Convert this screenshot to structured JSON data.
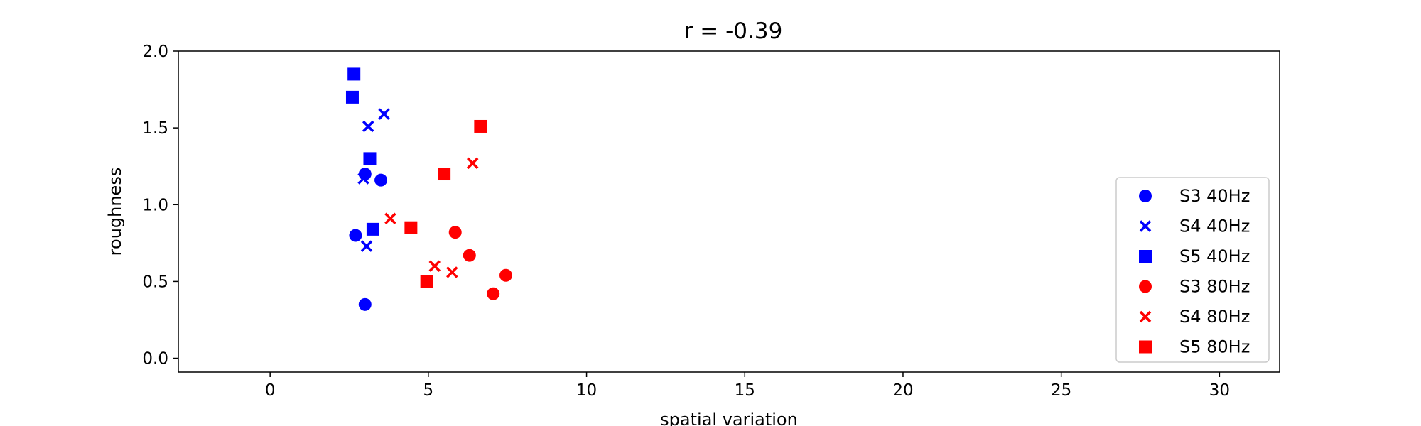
{
  "chart_data": {
    "type": "scatter",
    "title": "r = -0.39",
    "xlabel": "spatial variation",
    "ylabel": "roughness",
    "xlim": [
      -2.9,
      31.9
    ],
    "ylim": [
      -0.09,
      2.0
    ],
    "x_ticks": [
      0,
      5,
      10,
      15,
      20,
      25,
      30
    ],
    "y_ticks": [
      0.0,
      0.5,
      1.0,
      1.5,
      2.0
    ],
    "x_tick_labels": [
      "0",
      "5",
      "10",
      "15",
      "20",
      "25",
      "30"
    ],
    "y_tick_labels": [
      "0.0",
      "0.5",
      "1.0",
      "1.5",
      "2.0"
    ],
    "grid": false,
    "legend_position": "lower-right",
    "series": [
      {
        "name": "S3 40Hz",
        "color": "#0000ff",
        "marker": "circle",
        "points": [
          [
            3.0,
            1.2
          ],
          [
            3.5,
            1.16
          ],
          [
            2.7,
            0.8
          ],
          [
            3.0,
            0.35
          ]
        ]
      },
      {
        "name": "S4 40Hz",
        "color": "#0000ff",
        "marker": "x",
        "points": [
          [
            3.6,
            1.59
          ],
          [
            3.1,
            1.51
          ],
          [
            2.95,
            1.17
          ],
          [
            3.05,
            0.73
          ]
        ]
      },
      {
        "name": "S5 40Hz",
        "color": "#0000ff",
        "marker": "square",
        "points": [
          [
            2.65,
            1.85
          ],
          [
            2.6,
            1.7
          ],
          [
            3.15,
            1.3
          ],
          [
            3.25,
            0.84
          ]
        ]
      },
      {
        "name": "S3 80Hz",
        "color": "#ff0000",
        "marker": "circle",
        "points": [
          [
            5.85,
            0.82
          ],
          [
            6.3,
            0.67
          ],
          [
            7.45,
            0.54
          ],
          [
            7.05,
            0.42
          ]
        ]
      },
      {
        "name": "S4 80Hz",
        "color": "#ff0000",
        "marker": "x",
        "points": [
          [
            6.4,
            1.27
          ],
          [
            3.8,
            0.91
          ],
          [
            5.2,
            0.6
          ],
          [
            5.75,
            0.56
          ]
        ]
      },
      {
        "name": "S5 80Hz",
        "color": "#ff0000",
        "marker": "square",
        "points": [
          [
            6.65,
            1.51
          ],
          [
            5.5,
            1.2
          ],
          [
            4.45,
            0.85
          ],
          [
            4.95,
            0.5
          ]
        ]
      }
    ]
  }
}
